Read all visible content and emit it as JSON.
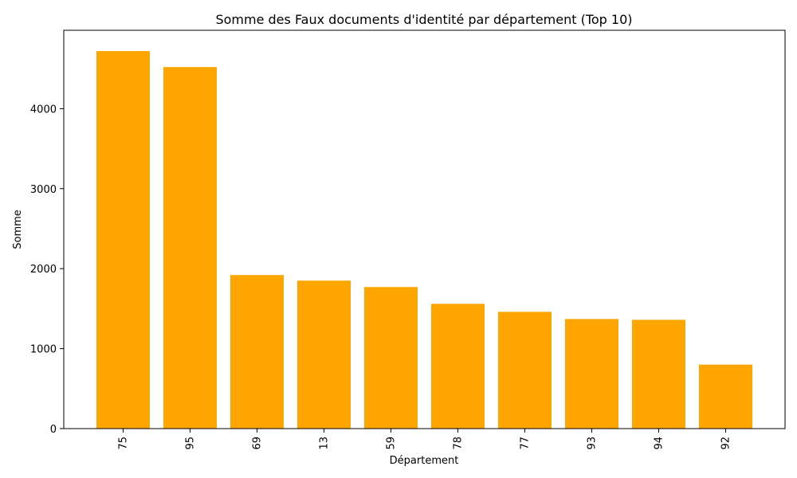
{
  "chart_data": {
    "type": "bar",
    "title": "Somme des Faux documents d'identité par département (Top 10)",
    "xlabel": "Département",
    "ylabel": "Somme",
    "categories": [
      "75",
      "95",
      "69",
      "13",
      "59",
      "78",
      "77",
      "93",
      "94",
      "92"
    ],
    "values": [
      4720,
      4520,
      1920,
      1850,
      1770,
      1560,
      1460,
      1370,
      1360,
      800
    ],
    "ylim": [
      0,
      4980
    ],
    "yticks": [
      0,
      1000,
      2000,
      3000,
      4000
    ],
    "ytick_labels": [
      "0",
      "1000",
      "2000",
      "3000",
      "4000"
    ],
    "grid": false,
    "bar_color": "#ffa500",
    "x_tick_rotation": "vertical"
  }
}
